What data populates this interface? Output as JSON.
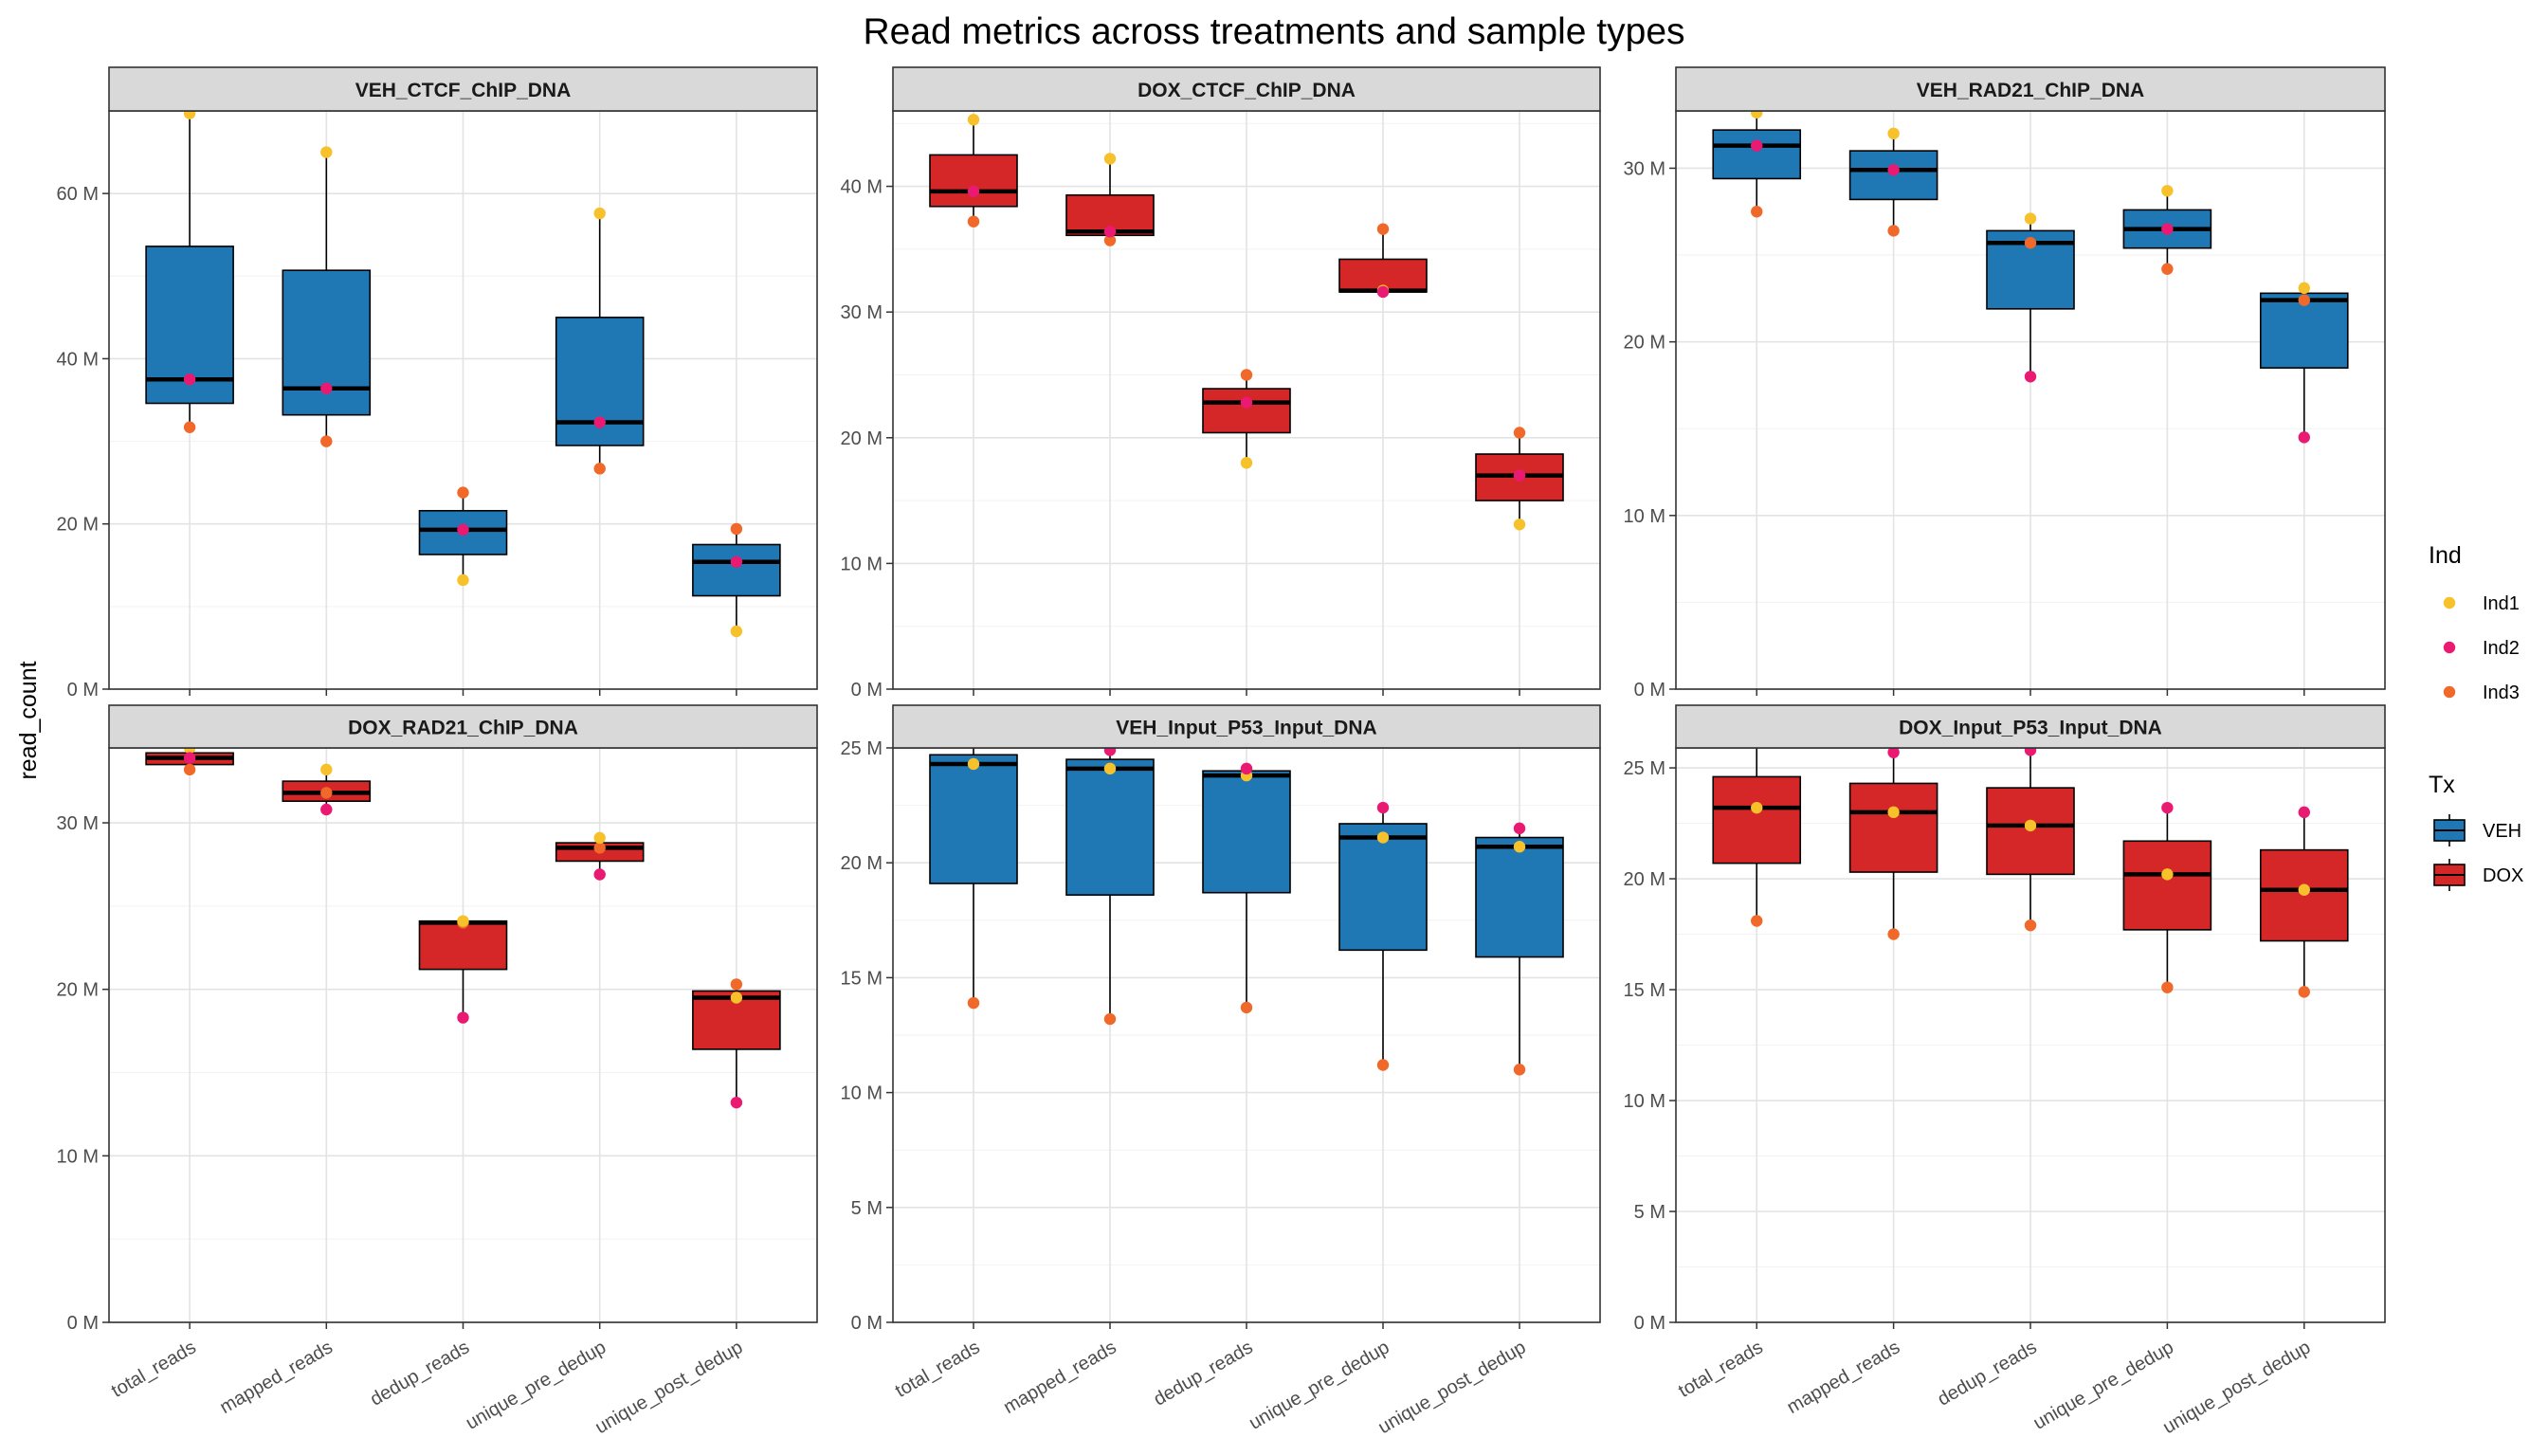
{
  "title": "Read metrics across treatments and sample types",
  "chart_data": {
    "type": "boxplot",
    "title": "Read metrics across treatments and sample types",
    "ylabel": "read_count",
    "categories": [
      "total_reads",
      "mapped_reads",
      "dedup_reads",
      "unique_pre_dedup",
      "unique_post_dedup"
    ],
    "legend_ind": {
      "title": "Ind",
      "entries": [
        {
          "name": "Ind1",
          "color": "#f7c12b"
        },
        {
          "name": "Ind2",
          "color": "#ea1a73"
        },
        {
          "name": "Ind3",
          "color": "#f0692a"
        }
      ]
    },
    "legend_tx": {
      "title": "Tx",
      "entries": [
        {
          "name": "VEH",
          "color": "#1f78b4"
        },
        {
          "name": "DOX",
          "color": "#d62728"
        }
      ]
    },
    "panels": [
      {
        "title": "VEH_CTCF_ChIP_DNA",
        "tx": "VEH",
        "ylim": [
          0,
          70
        ],
        "ticks": [
          0,
          20,
          40,
          60
        ],
        "tick_labels": [
          "0 M",
          "20 M",
          "40 M",
          "60 M"
        ],
        "boxes": [
          {
            "min": 31.7,
            "q1": 34.6,
            "median": 37.5,
            "q3": 53.6,
            "max": 69.7
          },
          {
            "min": 30.0,
            "q1": 33.2,
            "median": 36.4,
            "q3": 50.7,
            "max": 65.0
          },
          {
            "min": 13.2,
            "q1": 16.3,
            "median": 19.3,
            "q3": 21.6,
            "max": 23.8
          },
          {
            "min": 26.7,
            "q1": 29.5,
            "median": 32.3,
            "q3": 45.0,
            "max": 57.6
          },
          {
            "min": 7.0,
            "q1": 11.3,
            "median": 15.4,
            "q3": 17.5,
            "max": 19.4
          }
        ],
        "points": [
          {
            "Ind1": 69.7,
            "Ind2": 37.5,
            "Ind3": 31.7
          },
          {
            "Ind1": 65.0,
            "Ind2": 36.4,
            "Ind3": 30.0
          },
          {
            "Ind1": 13.2,
            "Ind2": 19.3,
            "Ind3": 23.8
          },
          {
            "Ind1": 57.6,
            "Ind2": 32.3,
            "Ind3": 26.7
          },
          {
            "Ind1": 7.0,
            "Ind2": 15.4,
            "Ind3": 19.4
          }
        ]
      },
      {
        "title": "DOX_CTCF_ChIP_DNA",
        "tx": "DOX",
        "ylim": [
          0,
          46
        ],
        "ticks": [
          0,
          10,
          20,
          30,
          40
        ],
        "tick_labels": [
          "0 M",
          "10 M",
          "20 M",
          "30 M",
          "40 M"
        ],
        "boxes": [
          {
            "min": 37.2,
            "q1": 38.4,
            "median": 39.6,
            "q3": 42.5,
            "max": 45.3
          },
          {
            "min": 35.7,
            "q1": 36.1,
            "median": 36.4,
            "q3": 39.3,
            "max": 42.2
          },
          {
            "min": 18.0,
            "q1": 20.4,
            "median": 22.8,
            "q3": 23.9,
            "max": 25.0
          },
          {
            "min": 31.6,
            "q1": 31.6,
            "median": 31.7,
            "q3": 34.2,
            "max": 36.6
          },
          {
            "min": 13.1,
            "q1": 15.0,
            "median": 17.0,
            "q3": 18.7,
            "max": 20.4
          }
        ],
        "points": [
          {
            "Ind1": 45.3,
            "Ind2": 39.6,
            "Ind3": 37.2
          },
          {
            "Ind1": 42.2,
            "Ind2": 36.4,
            "Ind3": 35.7
          },
          {
            "Ind1": 18.0,
            "Ind2": 22.8,
            "Ind3": 25.0
          },
          {
            "Ind1": 31.7,
            "Ind2": 31.6,
            "Ind3": 36.6
          },
          {
            "Ind1": 13.1,
            "Ind2": 17.0,
            "Ind3": 20.4
          }
        ]
      },
      {
        "title": "VEH_RAD21_ChIP_DNA",
        "tx": "VEH",
        "ylim": [
          0,
          33.3
        ],
        "ticks": [
          0,
          10,
          20,
          30
        ],
        "tick_labels": [
          "0 M",
          "10 M",
          "20 M",
          "30 M"
        ],
        "boxes": [
          {
            "min": 27.5,
            "q1": 29.4,
            "median": 31.3,
            "q3": 32.2,
            "max": 33.2
          },
          {
            "min": 26.4,
            "q1": 28.2,
            "median": 29.9,
            "q3": 31.0,
            "max": 32.0
          },
          {
            "min": 18.0,
            "q1": 21.9,
            "median": 25.7,
            "q3": 26.4,
            "max": 27.1
          },
          {
            "min": 24.2,
            "q1": 25.4,
            "median": 26.5,
            "q3": 27.6,
            "max": 28.7
          },
          {
            "min": 14.5,
            "q1": 18.5,
            "median": 22.4,
            "q3": 22.8,
            "max": 23.1
          }
        ],
        "points": [
          {
            "Ind1": 33.2,
            "Ind2": 31.3,
            "Ind3": 27.5
          },
          {
            "Ind1": 32.0,
            "Ind2": 29.9,
            "Ind3": 26.4
          },
          {
            "Ind1": 27.1,
            "Ind2": 18.0,
            "Ind3": 25.7
          },
          {
            "Ind1": 28.7,
            "Ind2": 26.5,
            "Ind3": 24.2
          },
          {
            "Ind1": 23.1,
            "Ind2": 14.5,
            "Ind3": 22.4
          }
        ]
      },
      {
        "title": "DOX_RAD21_ChIP_DNA",
        "tx": "DOX",
        "ylim": [
          0,
          34.5
        ],
        "ticks": [
          0,
          10,
          20,
          30
        ],
        "tick_labels": [
          "0 M",
          "10 M",
          "20 M",
          "30 M"
        ],
        "boxes": [
          {
            "min": 33.2,
            "q1": 33.5,
            "median": 33.9,
            "q3": 34.2,
            "max": 34.6
          },
          {
            "min": 30.8,
            "q1": 31.3,
            "median": 31.8,
            "q3": 32.5,
            "max": 33.2
          },
          {
            "min": 18.3,
            "q1": 21.2,
            "median": 24.0,
            "q3": 24.1,
            "max": 24.1
          },
          {
            "min": 26.9,
            "q1": 27.7,
            "median": 28.5,
            "q3": 28.8,
            "max": 29.1
          },
          {
            "min": 13.2,
            "q1": 16.4,
            "median": 19.5,
            "q3": 19.9,
            "max": 20.3
          }
        ],
        "points": [
          {
            "Ind1": 34.6,
            "Ind2": 33.9,
            "Ind3": 33.2
          },
          {
            "Ind1": 33.2,
            "Ind2": 30.8,
            "Ind3": 31.8
          },
          {
            "Ind1": 24.1,
            "Ind2": 18.3,
            "Ind3": 24.0
          },
          {
            "Ind1": 29.1,
            "Ind2": 26.9,
            "Ind3": 28.5
          },
          {
            "Ind1": 19.5,
            "Ind2": 13.2,
            "Ind3": 20.3
          }
        ]
      },
      {
        "title": "VEH_Input_P53_Input_DNA",
        "tx": "VEH",
        "ylim": [
          0,
          25
        ],
        "ticks": [
          0,
          5,
          10,
          15,
          20,
          25
        ],
        "tick_labels": [
          "0 M",
          "5 M",
          "10 M",
          "15 M",
          "20 M",
          "25 M"
        ],
        "boxes": [
          {
            "min": 13.9,
            "q1": 19.1,
            "median": 24.3,
            "q3": 24.7,
            "max": 25.1
          },
          {
            "min": 13.2,
            "q1": 18.6,
            "median": 24.1,
            "q3": 24.5,
            "max": 24.9
          },
          {
            "min": 13.7,
            "q1": 18.7,
            "median": 23.8,
            "q3": 24.0,
            "max": 24.1
          },
          {
            "min": 11.2,
            "q1": 16.2,
            "median": 21.1,
            "q3": 21.7,
            "max": 22.4
          },
          {
            "min": 11.0,
            "q1": 15.9,
            "median": 20.7,
            "q3": 21.1,
            "max": 21.5
          }
        ],
        "points": [
          {
            "Ind1": 24.3,
            "Ind2": 25.1,
            "Ind3": 13.9
          },
          {
            "Ind1": 24.1,
            "Ind2": 24.9,
            "Ind3": 13.2
          },
          {
            "Ind1": 23.8,
            "Ind2": 24.1,
            "Ind3": 13.7
          },
          {
            "Ind1": 21.1,
            "Ind2": 22.4,
            "Ind3": 11.2
          },
          {
            "Ind1": 20.7,
            "Ind2": 21.5,
            "Ind3": 11.0
          }
        ]
      },
      {
        "title": "DOX_Input_P53_Input_DNA",
        "tx": "DOX",
        "ylim": [
          0,
          25.9
        ],
        "ticks": [
          0,
          5,
          10,
          15,
          20,
          25
        ],
        "tick_labels": [
          "0 M",
          "5 M",
          "10 M",
          "15 M",
          "20 M",
          "25 M"
        ],
        "boxes": [
          {
            "min": 18.1,
            "q1": 20.7,
            "median": 23.2,
            "q3": 24.6,
            "max": 26.0
          },
          {
            "min": 17.5,
            "q1": 20.3,
            "median": 23.0,
            "q3": 24.3,
            "max": 25.7
          },
          {
            "min": 17.9,
            "q1": 20.2,
            "median": 22.4,
            "q3": 24.1,
            "max": 25.8
          },
          {
            "min": 15.1,
            "q1": 17.7,
            "median": 20.2,
            "q3": 21.7,
            "max": 23.2
          },
          {
            "min": 14.9,
            "q1": 17.2,
            "median": 19.5,
            "q3": 21.3,
            "max": 23.0
          }
        ],
        "points": [
          {
            "Ind1": 23.2,
            "Ind2": 26.0,
            "Ind3": 18.1
          },
          {
            "Ind1": 23.0,
            "Ind2": 25.7,
            "Ind3": 17.5
          },
          {
            "Ind1": 22.4,
            "Ind2": 25.8,
            "Ind3": 17.9
          },
          {
            "Ind1": 20.2,
            "Ind2": 23.2,
            "Ind3": 15.1
          },
          {
            "Ind1": 19.5,
            "Ind2": 23.0,
            "Ind3": 14.9
          }
        ]
      }
    ]
  }
}
